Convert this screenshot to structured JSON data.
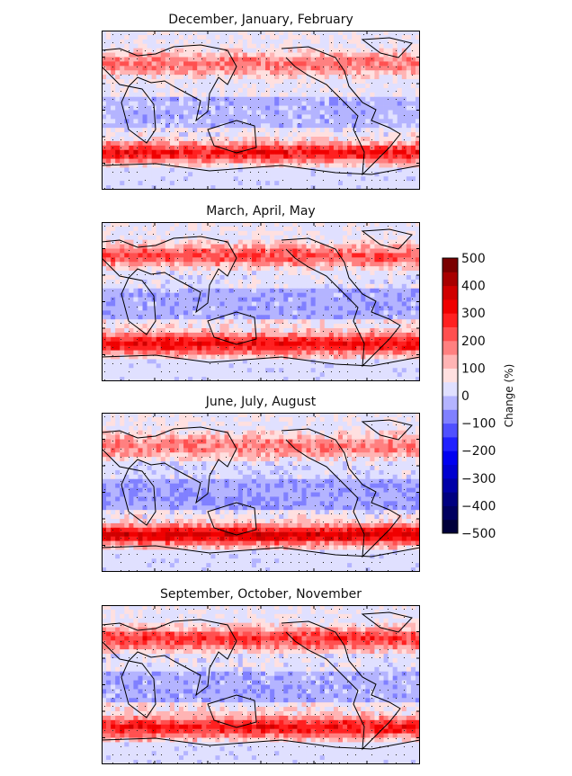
{
  "chart_data": {
    "type": "heatmap",
    "panels": [
      {
        "title": "December, January, February"
      },
      {
        "title": "March, April, May"
      },
      {
        "title": "June, July, August"
      },
      {
        "title": "September, October, November"
      }
    ],
    "colorbar": {
      "label": "Change (%)",
      "range": [
        -500,
        500
      ],
      "ticks": [
        500,
        400,
        300,
        200,
        100,
        0,
        -100,
        -200,
        -300,
        -400,
        -500
      ],
      "tick_labels": [
        "500",
        "400",
        "300",
        "200",
        "100",
        "0",
        "−100",
        "−200",
        "−300",
        "−400",
        "−500"
      ],
      "levels_step": 50,
      "colormap": "seismic (blue-white-red)"
    },
    "stippling": true
  }
}
